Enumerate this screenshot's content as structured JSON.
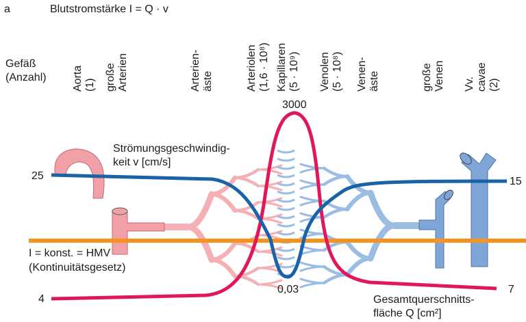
{
  "panel_label": "a",
  "title": "Blutstromstärke I = Q · v",
  "row_header": {
    "lines": [
      "Gefäß",
      "(Anzahl)"
    ]
  },
  "columns": [
    {
      "lines": [
        "Aorta",
        "(1)"
      ]
    },
    {
      "lines": [
        "große",
        "Arterien"
      ]
    },
    {
      "lines": [
        "Arterien-",
        "äste"
      ]
    },
    {
      "lines": [
        "Arteriolen",
        "(1,6 · 10⁸)"
      ]
    },
    {
      "lines": [
        "Kapillaren",
        "(5 · 10⁹)"
      ]
    },
    {
      "lines": [
        "Venolen",
        "(5 · 10⁸)"
      ]
    },
    {
      "lines": [
        "Venen-",
        "äste"
      ]
    },
    {
      "lines": [
        "große",
        "Venen"
      ]
    },
    {
      "lines": [
        "Vv.",
        "cavae",
        "(2)"
      ]
    }
  ],
  "velocity": {
    "label": [
      "Strömungsgeschwindig-",
      "keit v [cm/s]"
    ],
    "start": "25",
    "min": "0,03",
    "end": "15"
  },
  "cross_section": {
    "label": [
      "Gesamtquerschnitts-",
      "fläche Q [cm²]"
    ],
    "start": "4",
    "max": "3000",
    "end": "7"
  },
  "flow": {
    "label": [
      "I = konst. = HMV",
      "(Kontinuitätsgesetz)"
    ]
  }
}
